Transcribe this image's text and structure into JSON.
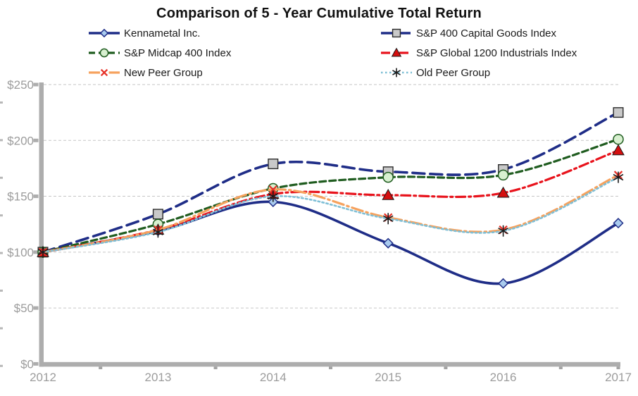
{
  "chart_data": {
    "type": "line",
    "title": "Comparison of 5 - Year Cumulative Total Return",
    "categories": [
      "2012",
      "2013",
      "2014",
      "2015",
      "2016",
      "2017"
    ],
    "y_tick_labels": [
      "$250",
      "$200",
      "$150",
      "$100",
      "$50",
      "$0"
    ],
    "ylim": [
      0,
      250
    ],
    "y_major_unit": 50,
    "grid": "horizontal dashed gray",
    "legend_position": "top, two columns",
    "smoothed_lines": true,
    "series": [
      {
        "name": "Kennametal Inc.",
        "values": [
          100,
          119,
          145,
          108,
          72,
          126
        ],
        "line_color": "#1F2D87",
        "line_style": "solid",
        "line_width": 3.6,
        "marker": "diamond",
        "marker_fill": "#A9CBEE",
        "marker_stroke": "#1F2D87"
      },
      {
        "name": "S&P 400 Capital Goods Index",
        "values": [
          100,
          134,
          179,
          172,
          174,
          225
        ],
        "line_color": "#1F2D87",
        "line_style": "long-dash",
        "line_width": 3.6,
        "marker": "square",
        "marker_fill": "#C9C9C9",
        "marker_stroke": "#2B2B2B"
      },
      {
        "name": "S&P Midcap 400 Index",
        "values": [
          100,
          125,
          157,
          167,
          169,
          201
        ],
        "line_color": "#1F5C1F",
        "line_style": "dash",
        "line_width": 3.2,
        "marker": "circle",
        "marker_fill": "#D8F0D0",
        "marker_stroke": "#1F5C1F"
      },
      {
        "name": "S&P Global 1200 Industrials Index",
        "values": [
          100,
          120,
          152,
          151,
          153,
          191
        ],
        "line_color": "#E8131C",
        "line_style": "dash-dot",
        "line_width": 3.2,
        "marker": "triangle",
        "marker_fill": "#D40F0F",
        "marker_stroke": "#1A1A1A"
      },
      {
        "name": "New Peer Group",
        "values": [
          100,
          120,
          156,
          131,
          120,
          169
        ],
        "line_color": "#F6A25E",
        "line_style": "long-dash-dot",
        "line_width": 3.2,
        "marker": "x",
        "marker_fill": "none",
        "marker_stroke": "#E63229"
      },
      {
        "name": "Old Peer Group",
        "values": [
          100,
          118,
          150,
          130,
          119,
          167
        ],
        "line_color": "#7FBFD6",
        "line_style": "dotted",
        "line_width": 2.6,
        "marker": "asterisk",
        "marker_fill": "none",
        "marker_stroke": "#1A1A1A"
      }
    ],
    "legend_columns": [
      [
        0,
        2,
        4
      ],
      [
        1,
        3,
        5
      ]
    ]
  },
  "style_colors": {
    "axis": "#ADADAD",
    "gridline": "#C6C6C6",
    "tick_label": "#9C9C9C",
    "title_text": "#111111"
  }
}
